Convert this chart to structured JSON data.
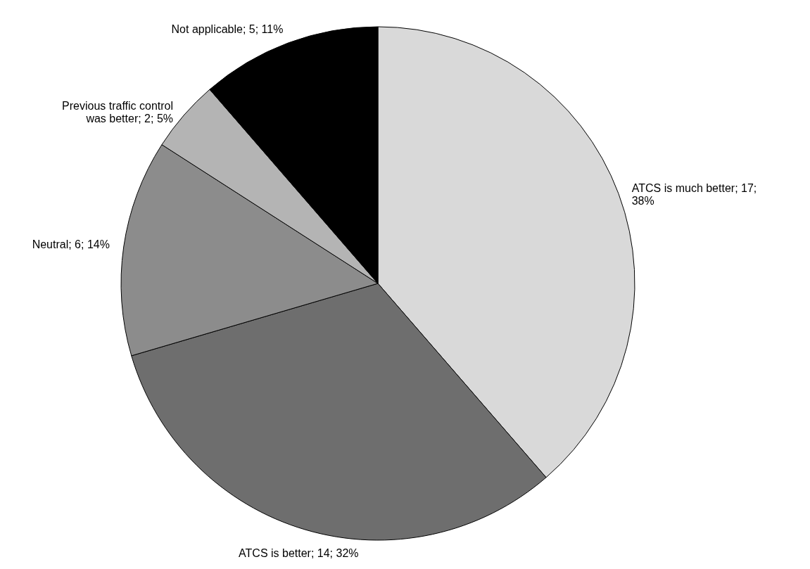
{
  "chart_data": {
    "type": "pie",
    "categories": [
      "ATCS is much better",
      "ATCS is better",
      "Neutral",
      "Previous traffic control was better",
      "Not applicable"
    ],
    "values": [
      17,
      14,
      6,
      2,
      5
    ],
    "value_labels": [
      "17; 38%",
      "14; 32%",
      "6; 14%",
      "2; 5%",
      "5; 11%"
    ],
    "colors": [
      "#d9d9d9",
      "#6e6e6e",
      "#8c8c8c",
      "#b4b4b4",
      "#000000"
    ]
  }
}
